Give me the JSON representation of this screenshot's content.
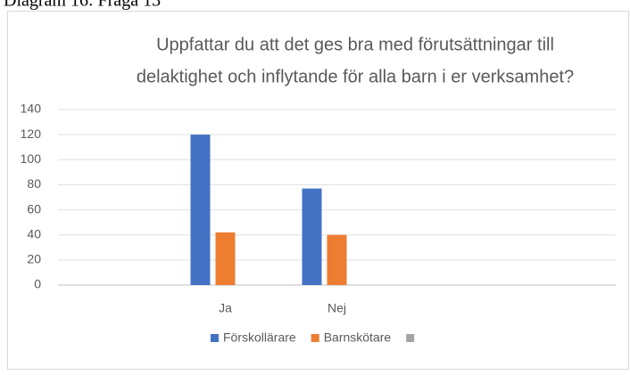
{
  "caption": "Diagram 16: Fråga 13",
  "chart_data": {
    "type": "bar",
    "title": [
      "Uppfattar du att det ges bra med förutsättningar till",
      "delaktighet och inflytande för alla barn i er verksamhet?"
    ],
    "categories": [
      null,
      "Ja",
      "Nej",
      null,
      null
    ],
    "series": [
      {
        "name": "Förskollärare",
        "color": "#4472c4",
        "values": [
          null,
          120,
          77,
          null,
          null
        ]
      },
      {
        "name": "Barnskötare",
        "color": "#ed7d31",
        "values": [
          null,
          42,
          40,
          null,
          null
        ]
      },
      {
        "name": null,
        "color": "#a5a5a5",
        "values": [
          null,
          null,
          null,
          null,
          null
        ]
      }
    ],
    "ylim": [
      0,
      140
    ],
    "yticks": [
      0,
      20,
      40,
      60,
      80,
      100,
      120,
      140
    ],
    "grid": true,
    "legend": "bottom"
  }
}
